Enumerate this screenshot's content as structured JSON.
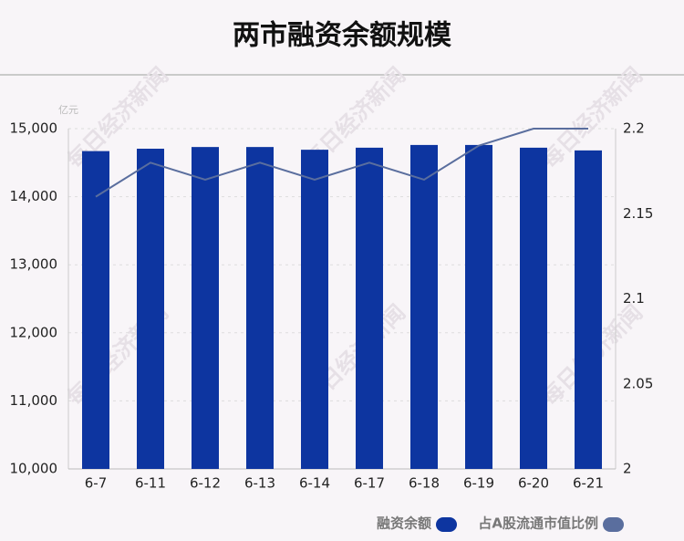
{
  "chart_data": {
    "type": "bar-line",
    "title": "两市融资余额规模",
    "y_unit": "亿元",
    "watermark": "每日经济新闻",
    "categories": [
      "6-7",
      "6-11",
      "6-12",
      "6-13",
      "6-14",
      "6-17",
      "6-18",
      "6-19",
      "6-20",
      "6-21"
    ],
    "series": [
      {
        "name": "融资余额",
        "type": "bar",
        "color": "#0d35a0",
        "values": [
          14670,
          14705,
          14730,
          14730,
          14690,
          14720,
          14760,
          14760,
          14720,
          14680
        ]
      },
      {
        "name": "占A股流通市值比例",
        "type": "line",
        "axis": "y2",
        "color": "#5a6e9e",
        "values": [
          2.16,
          2.18,
          2.17,
          2.18,
          2.17,
          2.18,
          2.17,
          2.19,
          2.2,
          2.2
        ]
      }
    ],
    "ylim": [
      10000,
      15000
    ],
    "yticks": [
      {
        "value": 10000,
        "label": "10,000"
      },
      {
        "value": 11000,
        "label": "11,000"
      },
      {
        "value": 12000,
        "label": "12,000"
      },
      {
        "value": 13000,
        "label": "13,000"
      },
      {
        "value": 14000,
        "label": "14,000"
      },
      {
        "value": 15000,
        "label": "15,000"
      }
    ],
    "y2lim": [
      2,
      2.2
    ],
    "y2ticks": [
      2,
      2.05,
      2.1,
      2.15,
      2.2
    ],
    "grid": true
  }
}
